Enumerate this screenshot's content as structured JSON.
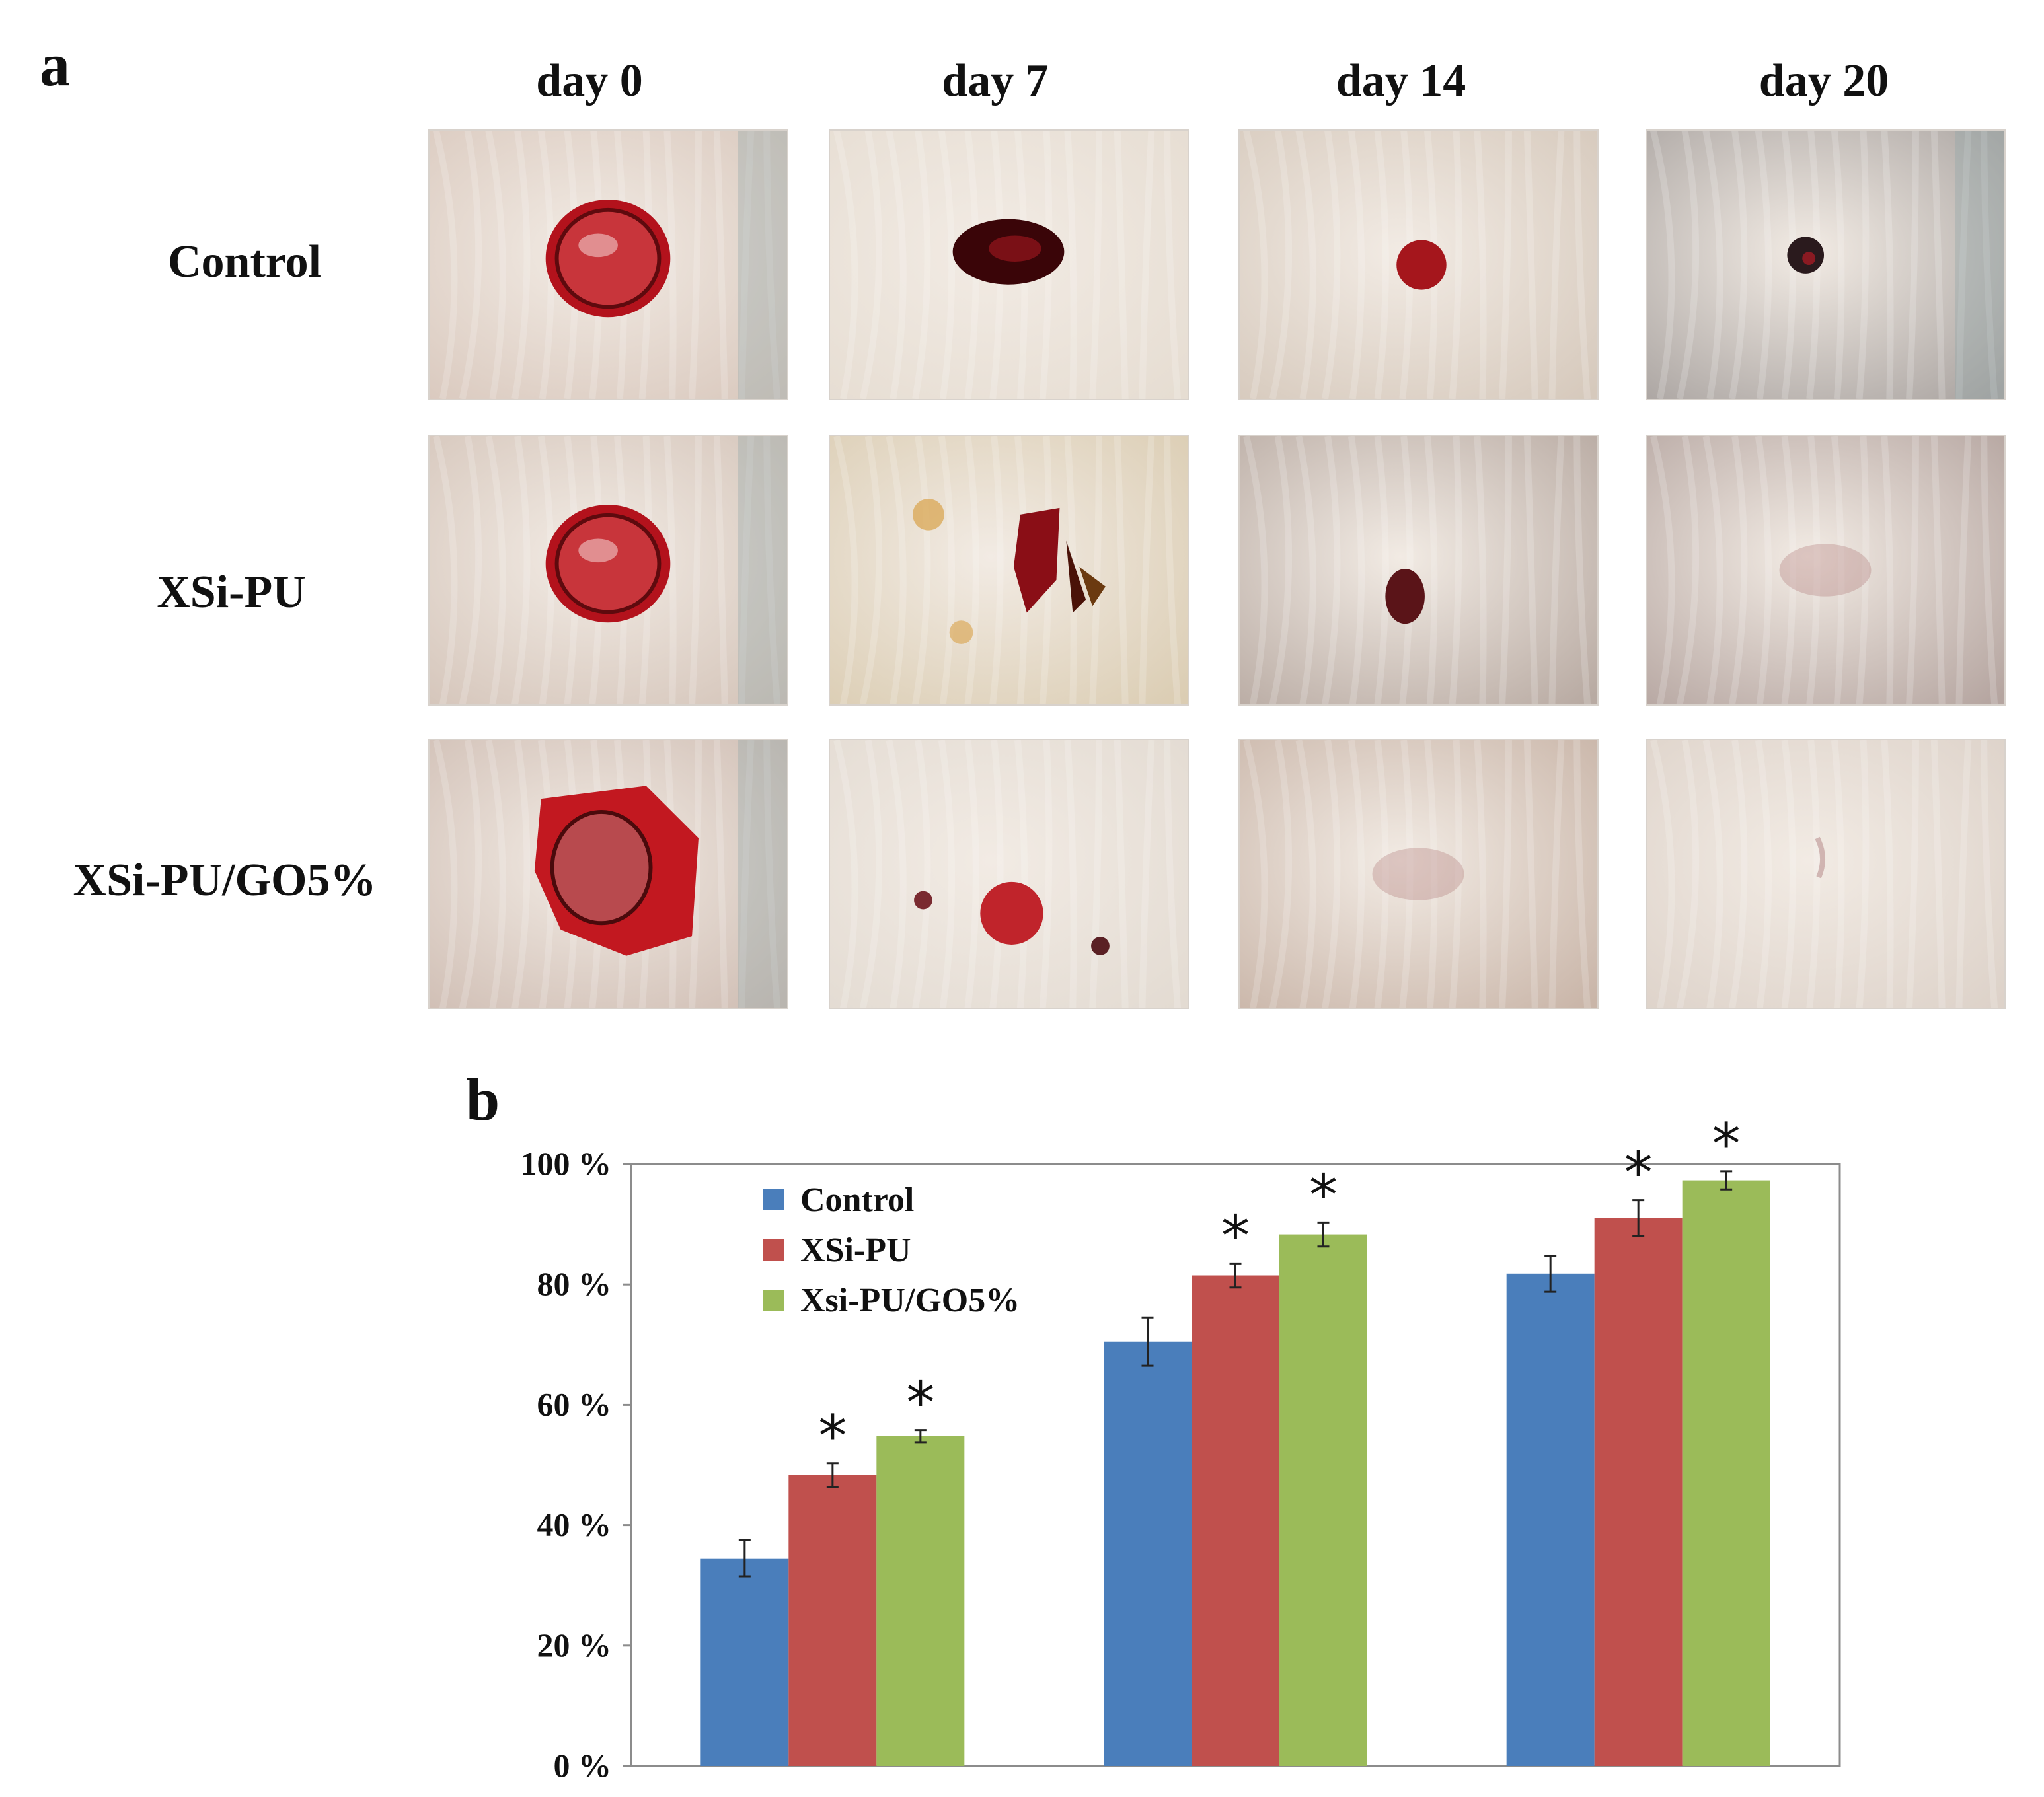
{
  "panel_a": {
    "label": "a",
    "columns": [
      "day 0",
      "day 7",
      "day 14",
      "day 20"
    ],
    "rows": [
      "Control",
      "XSi-PU",
      "XSi-PU/GO5%"
    ],
    "photos": [
      [
        {
          "wound": "open-red-circle"
        },
        {
          "wound": "dark-scab"
        },
        {
          "wound": "small-red-spot"
        },
        {
          "wound": "dark-dot"
        }
      ],
      [
        {
          "wound": "open-red-circle"
        },
        {
          "wound": "red-scab-fragments"
        },
        {
          "wound": "small-dark-spot"
        },
        {
          "wound": "healed-faint"
        }
      ],
      [
        {
          "wound": "open-red-irregular"
        },
        {
          "wound": "small-red-circle"
        },
        {
          "wound": "healed-faint"
        },
        {
          "wound": "healed"
        }
      ]
    ]
  },
  "panel_b": {
    "label": "b"
  },
  "chart_data": {
    "type": "bar",
    "title": "",
    "xlabel": "",
    "ylabel": "",
    "categories": [
      "",
      "",
      ""
    ],
    "ylim": [
      0,
      100
    ],
    "yticks": [
      0,
      20,
      40,
      60,
      80,
      100
    ],
    "ytick_labels": [
      "0 %",
      "20 %",
      "40 %",
      "60 %",
      "80 %",
      "100 %"
    ],
    "legend_position": "top-left",
    "grid": false,
    "series": [
      {
        "name": "Control",
        "color": "#4a7ebb",
        "values": [
          34.5,
          70.5,
          81.8
        ],
        "errors": [
          3.0,
          4.0,
          3.0
        ],
        "significant": [
          false,
          false,
          false
        ]
      },
      {
        "name": "XSi-PU",
        "color": "#c0504d",
        "values": [
          48.3,
          81.5,
          91.0
        ],
        "errors": [
          2.0,
          2.0,
          3.0
        ],
        "significant": [
          true,
          true,
          true
        ]
      },
      {
        "name": "Xsi-PU/GO5%",
        "color": "#9bbb59",
        "values": [
          54.8,
          88.3,
          97.3
        ],
        "errors": [
          1.0,
          2.0,
          1.5
        ],
        "significant": [
          true,
          true,
          true
        ]
      }
    ],
    "significance_marker": "*"
  }
}
